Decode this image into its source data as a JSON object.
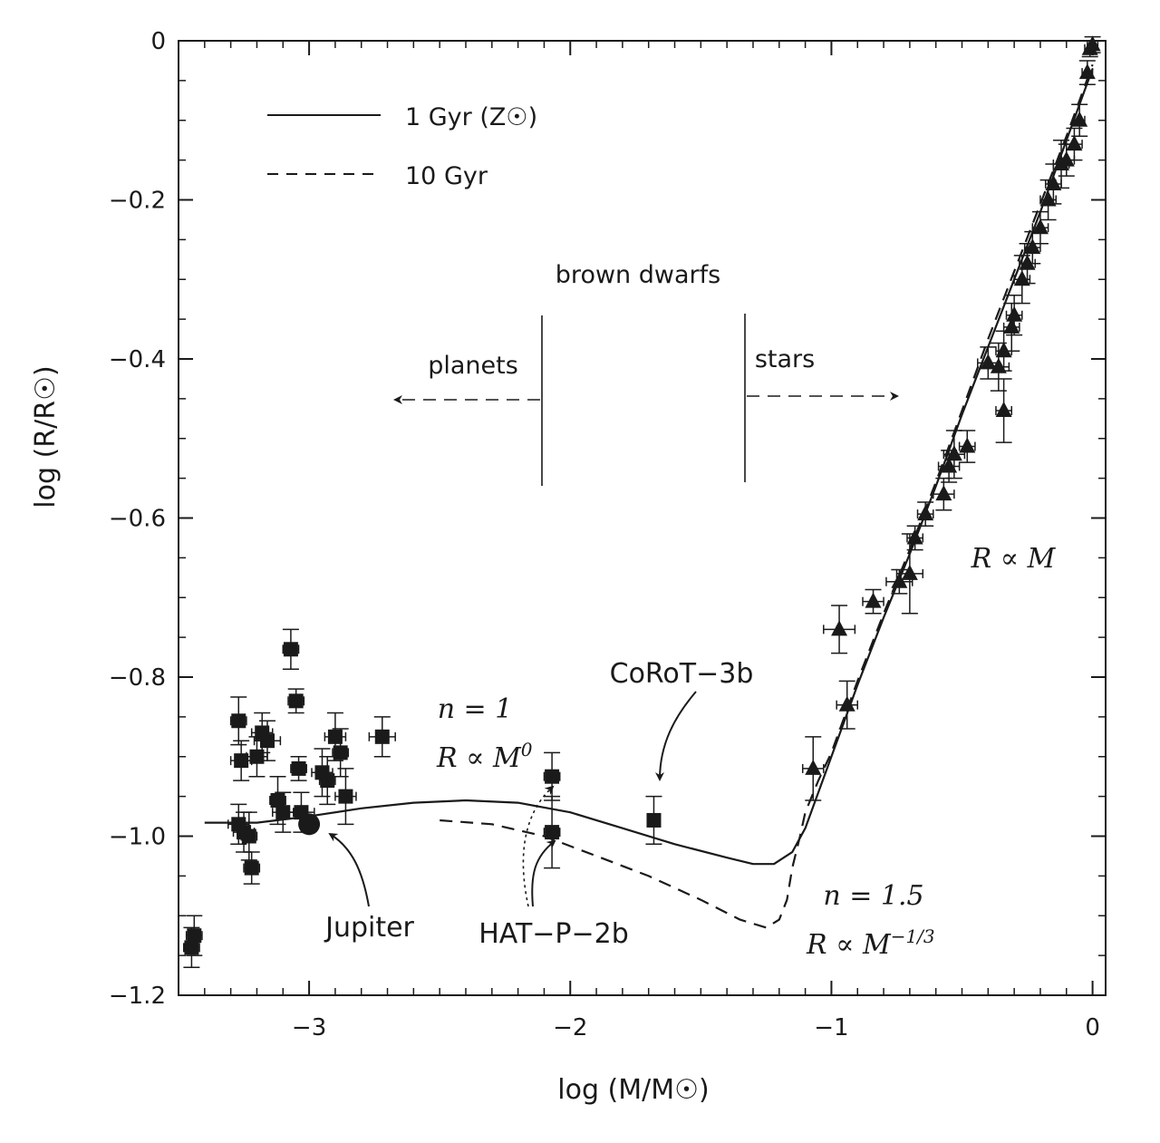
{
  "chart_data": {
    "type": "scatter",
    "title": "",
    "xlabel": "log (M/M☉)",
    "ylabel": "log  (R/R☉)",
    "xlim": [
      -3.5,
      0.05
    ],
    "ylim": [
      -1.2,
      0.0
    ],
    "x_ticks": [
      {
        "value": -3,
        "label": "−3"
      },
      {
        "value": -2,
        "label": "−2"
      },
      {
        "value": -1,
        "label": "−1"
      },
      {
        "value": 0,
        "label": "0"
      }
    ],
    "y_ticks": [
      {
        "value": 0,
        "label": "0"
      },
      {
        "value": -0.2,
        "label": "−0.2"
      },
      {
        "value": -0.4,
        "label": "−0.4"
      },
      {
        "value": -0.6,
        "label": "−0.6"
      },
      {
        "value": -0.8,
        "label": "−0.8"
      },
      {
        "value": -1.0,
        "label": "−1.0"
      },
      {
        "value": -1.2,
        "label": "−1.2"
      }
    ],
    "legend": {
      "position": "top-left",
      "entries": [
        {
          "label": "1 Gyr (Z☉)",
          "style": "solid"
        },
        {
          "label": "10 Gyr",
          "style": "dashed"
        }
      ]
    },
    "series": [
      {
        "name": "1 Gyr (Z☉)",
        "kind": "line",
        "style": "solid",
        "x": [
          -3.4,
          -3.2,
          -3.0,
          -2.8,
          -2.6,
          -2.4,
          -2.2,
          -2.0,
          -1.8,
          -1.6,
          -1.4,
          -1.3,
          -1.22,
          -1.15,
          -1.1,
          -1.05,
          -1.0,
          -0.9,
          -0.8,
          -0.7,
          -0.6,
          -0.5,
          -0.4,
          -0.3,
          -0.2,
          -0.1,
          0.0
        ],
        "y": [
          -0.983,
          -0.983,
          -0.975,
          -0.965,
          -0.958,
          -0.955,
          -0.958,
          -0.97,
          -0.99,
          -1.01,
          -1.027,
          -1.035,
          -1.035,
          -1.02,
          -0.99,
          -0.945,
          -0.9,
          -0.81,
          -0.725,
          -0.645,
          -0.56,
          -0.47,
          -0.385,
          -0.3,
          -0.215,
          -0.125,
          -0.035
        ]
      },
      {
        "name": "10 Gyr",
        "kind": "line",
        "style": "dashed",
        "x": [
          -2.5,
          -2.3,
          -2.1,
          -1.9,
          -1.7,
          -1.5,
          -1.35,
          -1.25,
          -1.2,
          -1.17,
          -1.15,
          -1.12,
          -1.1,
          -1.05,
          -1.0,
          -0.9,
          -0.8,
          -0.7,
          -0.6,
          -0.5,
          -0.4,
          -0.3,
          -0.2,
          -0.1,
          0.0
        ],
        "y": [
          -0.98,
          -0.985,
          -1.0,
          -1.025,
          -1.05,
          -1.08,
          -1.105,
          -1.115,
          -1.105,
          -1.08,
          -1.04,
          -1.0,
          -0.97,
          -0.93,
          -0.895,
          -0.805,
          -0.72,
          -0.64,
          -0.555,
          -0.465,
          -0.375,
          -0.29,
          -0.205,
          -0.12,
          -0.03
        ]
      },
      {
        "name": "planets",
        "kind": "points",
        "marker": "square",
        "points": [
          {
            "x": -3.45,
            "y": -1.14,
            "ex": 0.03,
            "ey": 0.025
          },
          {
            "x": -3.44,
            "y": -1.125,
            "ex": 0.03,
            "ey": 0.025
          },
          {
            "x": -3.27,
            "y": -0.855,
            "ex": 0.03,
            "ey": 0.03
          },
          {
            "x": -3.26,
            "y": -0.905,
            "ex": 0.04,
            "ey": 0.025
          },
          {
            "x": -3.27,
            "y": -0.985,
            "ex": 0.04,
            "ey": 0.025
          },
          {
            "x": -3.25,
            "y": -0.995,
            "ex": 0.04,
            "ey": 0.025
          },
          {
            "x": -3.23,
            "y": -1.0,
            "ex": 0.03,
            "ey": 0.03
          },
          {
            "x": -3.22,
            "y": -1.04,
            "ex": 0.03,
            "ey": 0.02
          },
          {
            "x": -3.2,
            "y": -0.9,
            "ex": 0.04,
            "ey": 0.025
          },
          {
            "x": -3.18,
            "y": -0.87,
            "ex": 0.04,
            "ey": 0.025
          },
          {
            "x": -3.16,
            "y": -0.88,
            "ex": 0.05,
            "ey": 0.025
          },
          {
            "x": -3.12,
            "y": -0.955,
            "ex": 0.03,
            "ey": 0.03
          },
          {
            "x": -3.1,
            "y": -0.97,
            "ex": 0.04,
            "ey": 0.025
          },
          {
            "x": -3.07,
            "y": -0.765,
            "ex": 0.03,
            "ey": 0.025
          },
          {
            "x": -3.05,
            "y": -0.83,
            "ex": 0.03,
            "ey": 0.015
          },
          {
            "x": -3.04,
            "y": -0.915,
            "ex": 0.03,
            "ey": 0.015
          },
          {
            "x": -3.03,
            "y": -0.97,
            "ex": 0.05,
            "ey": 0.025
          },
          {
            "x": -2.95,
            "y": -0.92,
            "ex": 0.04,
            "ey": 0.03
          },
          {
            "x": -2.93,
            "y": -0.93,
            "ex": 0.03,
            "ey": 0.03
          },
          {
            "x": -2.9,
            "y": -0.875,
            "ex": 0.04,
            "ey": 0.03
          },
          {
            "x": -2.88,
            "y": -0.895,
            "ex": 0.03,
            "ey": 0.03
          },
          {
            "x": -2.86,
            "y": -0.95,
            "ex": 0.04,
            "ey": 0.035
          },
          {
            "x": -2.72,
            "y": -0.875,
            "ex": 0.05,
            "ey": 0.025
          },
          {
            "x": -2.07,
            "y": -0.925,
            "ex": 0.03,
            "ey": 0.03
          },
          {
            "x": -2.07,
            "y": -0.995,
            "ex": 0.03,
            "ey": 0.045
          },
          {
            "x": -1.68,
            "y": -0.98,
            "ex": 0.02,
            "ey": 0.03
          }
        ]
      },
      {
        "name": "stars",
        "kind": "points",
        "marker": "triangle",
        "points": [
          {
            "x": -1.07,
            "y": -0.915,
            "ex": 0.04,
            "ey": 0.04
          },
          {
            "x": -0.94,
            "y": -0.835,
            "ex": 0.04,
            "ey": 0.03
          },
          {
            "x": -0.97,
            "y": -0.74,
            "ex": 0.06,
            "ey": 0.03
          },
          {
            "x": -0.84,
            "y": -0.705,
            "ex": 0.04,
            "ey": 0.015
          },
          {
            "x": -0.74,
            "y": -0.68,
            "ex": 0.05,
            "ey": 0.015
          },
          {
            "x": -0.7,
            "y": -0.67,
            "ex": 0.05,
            "ey": 0.05
          },
          {
            "x": -0.68,
            "y": -0.625,
            "ex": 0.03,
            "ey": 0.015
          },
          {
            "x": -0.64,
            "y": -0.595,
            "ex": 0.03,
            "ey": 0.015
          },
          {
            "x": -0.57,
            "y": -0.57,
            "ex": 0.04,
            "ey": 0.02
          },
          {
            "x": -0.55,
            "y": -0.535,
            "ex": 0.04,
            "ey": 0.02
          },
          {
            "x": -0.53,
            "y": -0.52,
            "ex": 0.04,
            "ey": 0.03
          },
          {
            "x": -0.48,
            "y": -0.51,
            "ex": 0.03,
            "ey": 0.02
          },
          {
            "x": -0.34,
            "y": -0.465,
            "ex": 0.03,
            "ey": 0.04
          },
          {
            "x": -0.4,
            "y": -0.405,
            "ex": 0.04,
            "ey": 0.02
          },
          {
            "x": -0.36,
            "y": -0.41,
            "ex": 0.04,
            "ey": 0.03
          },
          {
            "x": -0.34,
            "y": -0.39,
            "ex": 0.03,
            "ey": 0.025
          },
          {
            "x": -0.31,
            "y": -0.36,
            "ex": 0.03,
            "ey": 0.03
          },
          {
            "x": -0.3,
            "y": -0.345,
            "ex": 0.03,
            "ey": 0.025
          },
          {
            "x": -0.27,
            "y": -0.3,
            "ex": 0.03,
            "ey": 0.03
          },
          {
            "x": -0.25,
            "y": -0.28,
            "ex": 0.03,
            "ey": 0.025
          },
          {
            "x": -0.23,
            "y": -0.26,
            "ex": 0.03,
            "ey": 0.02
          },
          {
            "x": -0.2,
            "y": -0.235,
            "ex": 0.03,
            "ey": 0.02
          },
          {
            "x": -0.17,
            "y": -0.2,
            "ex": 0.03,
            "ey": 0.025
          },
          {
            "x": -0.15,
            "y": -0.18,
            "ex": 0.03,
            "ey": 0.025
          },
          {
            "x": -0.12,
            "y": -0.155,
            "ex": 0.03,
            "ey": 0.03
          },
          {
            "x": -0.1,
            "y": -0.15,
            "ex": 0.03,
            "ey": 0.02
          },
          {
            "x": -0.07,
            "y": -0.13,
            "ex": 0.03,
            "ey": 0.02
          },
          {
            "x": -0.05,
            "y": -0.1,
            "ex": 0.02,
            "ey": 0.02
          },
          {
            "x": -0.02,
            "y": -0.04,
            "ex": 0.02,
            "ey": 0.015
          },
          {
            "x": -0.01,
            "y": -0.01,
            "ex": 0.02,
            "ey": 0.01
          },
          {
            "x": 0.0,
            "y": -0.005,
            "ex": 0.02,
            "ey": 0.01
          }
        ]
      },
      {
        "name": "Jupiter",
        "kind": "points",
        "marker": "circle",
        "points": [
          {
            "x": -3.0,
            "y": -0.985
          }
        ]
      }
    ],
    "annotations": [
      {
        "text": "brown dwarfs",
        "x": -1.92,
        "y": -0.29
      },
      {
        "text": "planets",
        "x": -2.42,
        "y": -0.4,
        "arrow": "left"
      },
      {
        "text": "stars",
        "x": -1.21,
        "y": -0.4,
        "arrow": "right"
      },
      {
        "text": "CoRoT−3b",
        "x": -1.62,
        "y": -0.79
      },
      {
        "text": "Jupiter",
        "x": -2.83,
        "y": -1.125
      },
      {
        "text": "HAT−P−2b",
        "x": -2.27,
        "y": -1.13
      },
      {
        "text": "R ∝ M",
        "x": -0.28,
        "y": -0.675
      }
    ],
    "regimes": [
      {
        "n_label": "n = 1",
        "law_base": "R ∝ M",
        "law_exp": "0",
        "x": -2.5,
        "y": -0.86
      },
      {
        "n_label": "n = 1.5",
        "law_base": "R ∝ M",
        "law_exp": "−1/3",
        "x": -0.94,
        "y": -1.11
      }
    ]
  }
}
